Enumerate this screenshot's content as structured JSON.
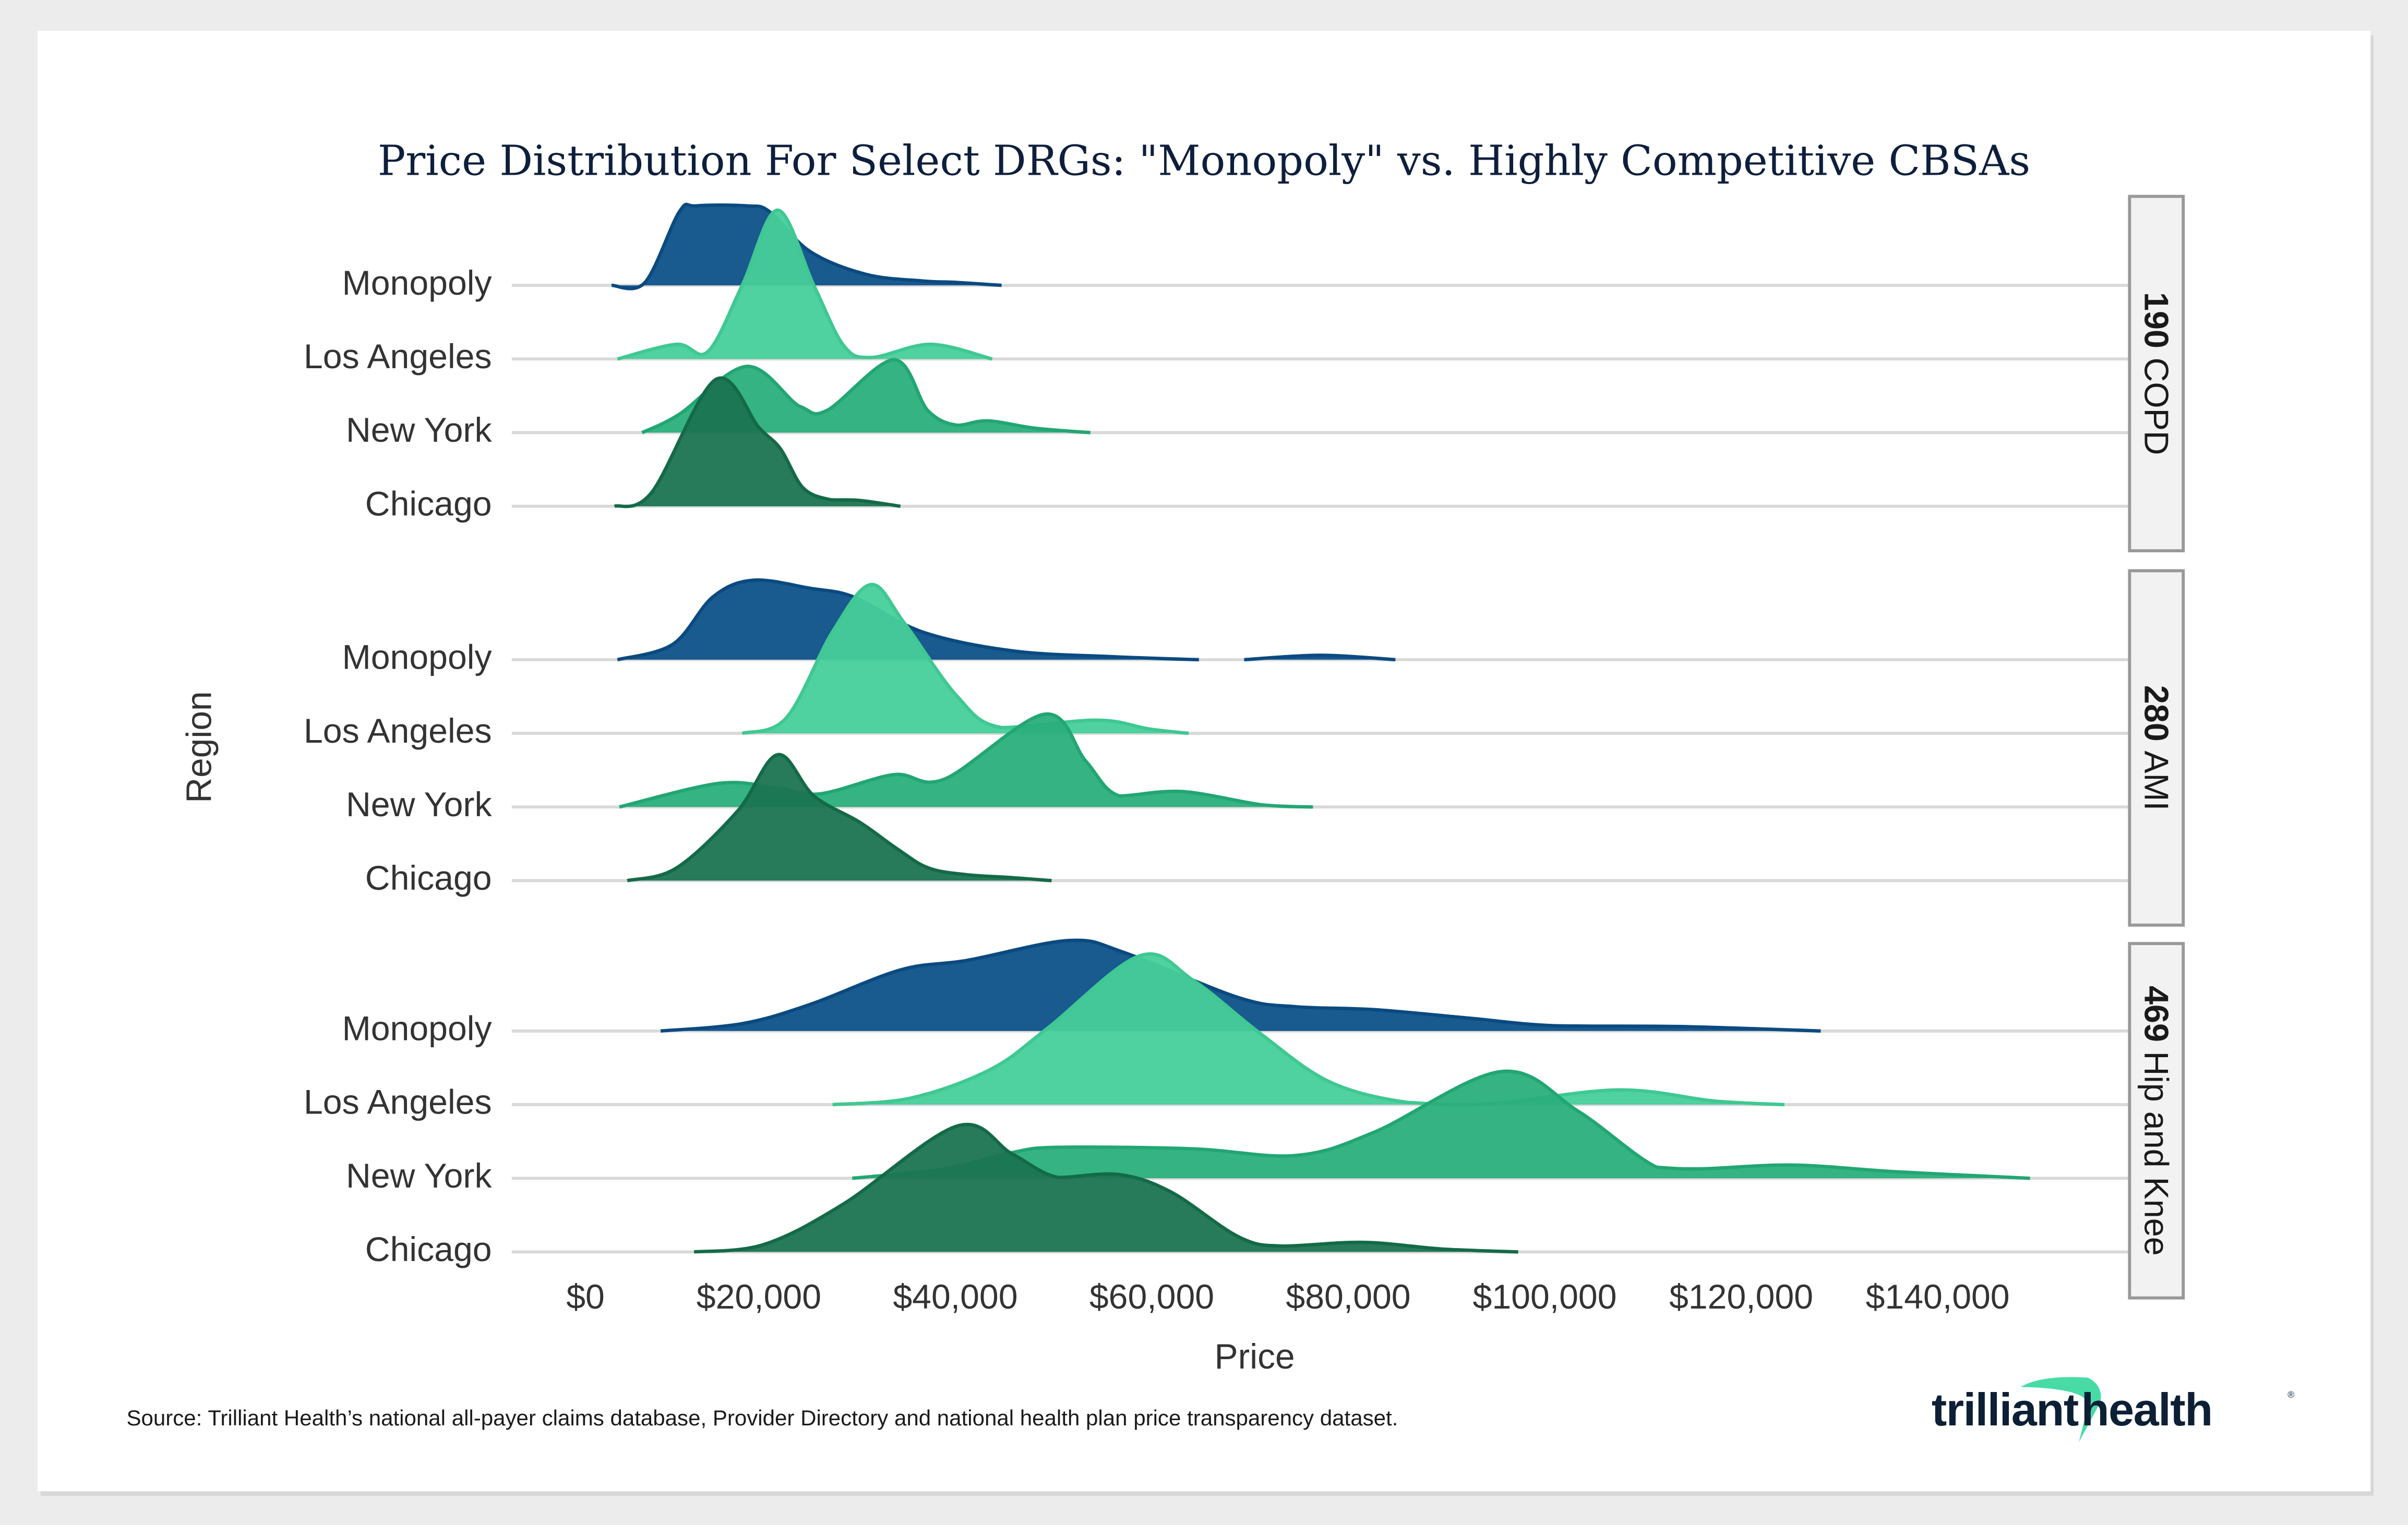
{
  "chart_data": {
    "type": "ridgeline",
    "title": "Price Distribution For Select DRGs: \"Monopoly\" vs. Highly Competitive CBSAs",
    "xlabel": "Price",
    "ylabel": "Region",
    "xlim": [
      0,
      150000
    ],
    "x_ticks": [
      0,
      20000,
      40000,
      60000,
      80000,
      100000,
      120000,
      140000
    ],
    "x_tick_labels": [
      "$0",
      "$20,000",
      "$40,000",
      "$60,000",
      "$80,000",
      "$100,000",
      "$120,000",
      "$140,000"
    ],
    "grid": "horizontal baselines",
    "density_unit": "relative density (1 = spacing between rows)",
    "series_colors": {
      "Monopoly": "#0d5189",
      "Los Angeles": "#47cf9b",
      "New York": "#2aaf7c",
      "Chicago": "#1b7452"
    },
    "facets": [
      {
        "code": "190",
        "name": "COPD",
        "rows": [
          {
            "region": "Monopoly",
            "segments": [
              [
                [
                  5000,
                  0
                ],
                [
                  8400,
                  0.04
                ],
                [
                  11900,
                  1.0
                ],
                [
                  13600,
                  1.08
                ],
                [
                  18750,
                  1.08
                ],
                [
                  21100,
                  1.0
                ],
                [
                  25200,
                  0.46
                ],
                [
                  30900,
                  0.15
                ],
                [
                  36600,
                  0.06
                ],
                [
                  40200,
                  0.04
                ],
                [
                  44700,
                  0
                ]
              ]
            ]
          },
          {
            "region": "Los Angeles",
            "segments": [
              [
                [
                  5600,
                  0
                ],
                [
                  11600,
                  0.2
                ],
                [
                  14800,
                  0.1
                ],
                [
                  18300,
                  1.0
                ],
                [
                  21900,
                  2.02
                ],
                [
                  25600,
                  1.0
                ],
                [
                  28600,
                  0.19
                ],
                [
                  31400,
                  0.02
                ],
                [
                  37500,
                  0.2
                ],
                [
                  43750,
                  0
                ]
              ]
            ]
          },
          {
            "region": "New York",
            "segments": [
              [
                [
                  8100,
                  0
                ],
                [
                  11900,
                  0.25
                ],
                [
                  18750,
                  0.9
                ],
                [
                  24100,
                  0.36
                ],
                [
                  26900,
                  0.3
                ],
                [
                  33750,
                  0.99
                ],
                [
                  37200,
                  0.3
                ],
                [
                  40200,
                  0.1
                ],
                [
                  43300,
                  0.16
                ],
                [
                  48100,
                  0.06
                ],
                [
                  53750,
                  0
                ]
              ]
            ]
          },
          {
            "region": "Chicago",
            "segments": [
              [
                [
                  5300,
                  0
                ],
                [
                  9100,
                  0.19
                ],
                [
                  15600,
                  1.72
                ],
                [
                  20000,
                  1.07
                ],
                [
                  22200,
                  0.78
                ],
                [
                  24500,
                  0.25
                ],
                [
                  27300,
                  0.09
                ],
                [
                  30300,
                  0.08
                ],
                [
                  34400,
                  0
                ]
              ]
            ]
          }
        ]
      },
      {
        "code": "280",
        "name": "AMI",
        "rows": [
          {
            "region": "Monopoly",
            "segments": [
              [
                [
                  5600,
                  0
                ],
                [
                  11250,
                  0.21
                ],
                [
                  15300,
                  0.85
                ],
                [
                  19400,
                  1.08
                ],
                [
                  25200,
                  0.97
                ],
                [
                  29700,
                  0.85
                ],
                [
                  36600,
                  0.38
                ],
                [
                  45800,
                  0.12
                ],
                [
                  56250,
                  0.04
                ],
                [
                  64800,
                  0
                ]
              ],
              [
                [
                  69400,
                  0
                ],
                [
                  77200,
                  0.06
                ],
                [
                  84800,
                  0
                ]
              ]
            ]
          },
          {
            "region": "Los Angeles",
            "segments": [
              [
                [
                  18300,
                  0
                ],
                [
                  22800,
                  0.21
                ],
                [
                  27500,
                  1.38
                ],
                [
                  31400,
                  2.02
                ],
                [
                  34800,
                  1.5
                ],
                [
                  40200,
                  0.5
                ],
                [
                  44700,
                  0.08
                ],
                [
                  54500,
                  0.18
                ],
                [
                  59700,
                  0.06
                ],
                [
                  63750,
                  0
                ]
              ]
            ]
          },
          {
            "region": "New York",
            "segments": [
              [
                [
                  5800,
                  0
                ],
                [
                  15900,
                  0.32
                ],
                [
                  21700,
                  0.26
                ],
                [
                  26250,
                  0.18
                ],
                [
                  33750,
                  0.44
                ],
                [
                  38900,
                  0.38
                ],
                [
                  49100,
                  1.26
                ],
                [
                  53300,
                  0.62
                ],
                [
                  56700,
                  0.15
                ],
                [
                  63100,
                  0.21
                ],
                [
                  71250,
                  0.03
                ],
                [
                  76400,
                  0
                ]
              ]
            ]
          },
          {
            "region": "Chicago",
            "segments": [
              [
                [
                  6600,
                  0
                ],
                [
                  11600,
                  0.17
                ],
                [
                  17800,
                  0.94
                ],
                [
                  21900,
                  1.71
                ],
                [
                  25600,
                  1.15
                ],
                [
                  30300,
                  0.79
                ],
                [
                  34200,
                  0.42
                ],
                [
                  37300,
                  0.17
                ],
                [
                  41250,
                  0.08
                ],
                [
                  45900,
                  0.04
                ],
                [
                  49800,
                  0
                ]
              ]
            ]
          }
        ]
      },
      {
        "code": "469",
        "name": "Hip and Knee",
        "rows": [
          {
            "region": "Monopoly",
            "segments": [
              [
                [
                  10000,
                  0
                ],
                [
                  18300,
                  0.1
                ],
                [
                  25200,
                  0.36
                ],
                [
                  34400,
                  0.83
                ],
                [
                  41250,
                  0.96
                ],
                [
                  51600,
                  1.23
                ],
                [
                  57300,
                  1.06
                ],
                [
                  68900,
                  0.45
                ],
                [
                  74700,
                  0.33
                ],
                [
                  82700,
                  0.29
                ],
                [
                  91900,
                  0.18
                ],
                [
                  101100,
                  0.07
                ],
                [
                  113750,
                  0.06
                ],
                [
                  128100,
                  0
                ]
              ]
            ]
          },
          {
            "region": "Los Angeles",
            "segments": [
              [
                [
                  27500,
                  0
                ],
                [
                  35500,
                  0.09
                ],
                [
                  43600,
                  0.48
                ],
                [
                  49400,
                  1.04
                ],
                [
                  58750,
                  2.02
                ],
                [
                  64200,
                  1.69
                ],
                [
                  71100,
                  0.96
                ],
                [
                  78100,
                  0.31
                ],
                [
                  86100,
                  0.03
                ],
                [
                  94200,
                  0.01
                ],
                [
                  107500,
                  0.2
                ],
                [
                  117200,
                  0.05
                ],
                [
                  124400,
                  0
                ]
              ]
            ]
          },
          {
            "region": "New York",
            "segments": [
              [
                [
                  29500,
                  0
                ],
                [
                  38900,
                  0.13
                ],
                [
                  45800,
                  0.35
                ],
                [
                  50500,
                  0.42
                ],
                [
                  64200,
                  0.4
                ],
                [
                  74700,
                  0.31
                ],
                [
                  82700,
                  0.63
                ],
                [
                  95600,
                  1.45
                ],
                [
                  103400,
                  0.91
                ],
                [
                  111400,
                  0.15
                ],
                [
                  116100,
                  0.13
                ],
                [
                  125300,
                  0.18
                ],
                [
                  135600,
                  0.09
                ],
                [
                  149400,
                  0
                ]
              ]
            ]
          },
          {
            "region": "Chicago",
            "segments": [
              [
                [
                  13400,
                  0
                ],
                [
                  20500,
                  0.1
                ],
                [
                  28600,
                  0.65
                ],
                [
                  40200,
                  1.71
                ],
                [
                  45800,
                  1.33
                ],
                [
                  50500,
                  1.01
                ],
                [
                  56700,
                  1.05
                ],
                [
                  62000,
                  0.81
                ],
                [
                  68900,
                  0.2
                ],
                [
                  73400,
                  0.08
                ],
                [
                  81600,
                  0.13
                ],
                [
                  89500,
                  0.04
                ],
                [
                  97300,
                  0
                ]
              ]
            ]
          }
        ]
      }
    ]
  },
  "footer": {
    "source": "Source: Trilliant Health’s national all-payer claims database, Provider Directory and national health plan price transparency dataset.",
    "logo_text_left": "trilliant",
    "logo_text_right": "health",
    "logo_accent": "#48dba6",
    "logo_dark": "#0c1f35"
  }
}
